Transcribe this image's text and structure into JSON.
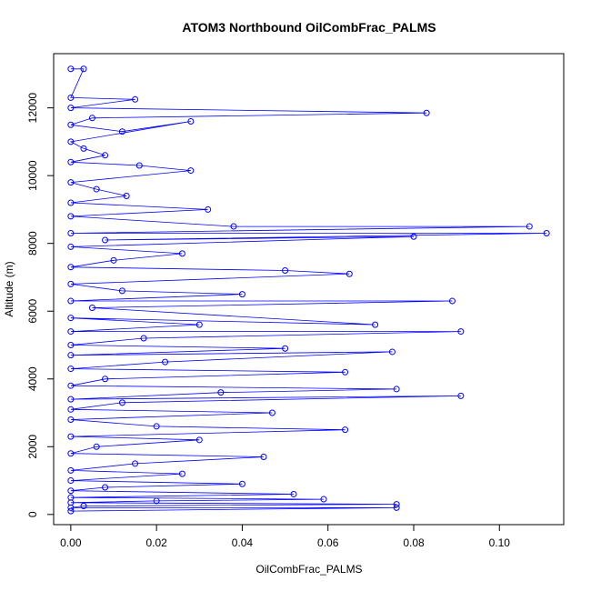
{
  "chart_data": {
    "type": "scatter",
    "title": "ATOM3 Northbound OilCombFrac_PALMS",
    "xlabel": "OilCombFrac_PALMS",
    "ylabel": "Altitude (m)",
    "xlim": [
      -0.004,
      0.115
    ],
    "ylim": [
      -300,
      13600
    ],
    "x_ticks": [
      0.0,
      0.02,
      0.04,
      0.06,
      0.08,
      0.1
    ],
    "x_tick_labels": [
      "0.00",
      "0.02",
      "0.04",
      "0.06",
      "0.08",
      "0.10"
    ],
    "y_ticks": [
      0,
      2000,
      4000,
      6000,
      8000,
      10000,
      12000
    ],
    "y_tick_labels": [
      "0",
      "2000",
      "4000",
      "6000",
      "8000",
      "10000",
      "12000"
    ],
    "grid": false,
    "color": "#0000ff",
    "marker": "open-circle",
    "connected": true,
    "series": [
      {
        "values": [
          [
            0.0,
            13150
          ],
          [
            0.003,
            13150
          ],
          [
            0.0,
            12300
          ],
          [
            0.015,
            12250
          ],
          [
            0.0,
            12000
          ],
          [
            0.083,
            11850
          ],
          [
            0.005,
            11700
          ],
          [
            0.0,
            11500
          ],
          [
            0.012,
            11300
          ],
          [
            0.028,
            11600
          ],
          [
            0.0,
            11000
          ],
          [
            0.003,
            10800
          ],
          [
            0.008,
            10600
          ],
          [
            0.0,
            10400
          ],
          [
            0.016,
            10300
          ],
          [
            0.028,
            10150
          ],
          [
            0.0,
            9800
          ],
          [
            0.006,
            9600
          ],
          [
            0.013,
            9400
          ],
          [
            0.0,
            9200
          ],
          [
            0.032,
            9000
          ],
          [
            0.0,
            8800
          ],
          [
            0.038,
            8500
          ],
          [
            0.107,
            8500
          ],
          [
            0.0,
            8300
          ],
          [
            0.111,
            8300
          ],
          [
            0.008,
            8100
          ],
          [
            0.08,
            8200
          ],
          [
            0.0,
            7900
          ],
          [
            0.026,
            7700
          ],
          [
            0.01,
            7500
          ],
          [
            0.0,
            7300
          ],
          [
            0.05,
            7200
          ],
          [
            0.065,
            7100
          ],
          [
            0.0,
            6800
          ],
          [
            0.012,
            6600
          ],
          [
            0.04,
            6500
          ],
          [
            0.0,
            6300
          ],
          [
            0.089,
            6300
          ],
          [
            0.005,
            6100
          ],
          [
            0.071,
            5600
          ],
          [
            0.0,
            5800
          ],
          [
            0.03,
            5600
          ],
          [
            0.0,
            5400
          ],
          [
            0.091,
            5400
          ],
          [
            0.017,
            5200
          ],
          [
            0.0,
            5000
          ],
          [
            0.05,
            4900
          ],
          [
            0.0,
            4700
          ],
          [
            0.075,
            4800
          ],
          [
            0.022,
            4500
          ],
          [
            0.0,
            4300
          ],
          [
            0.064,
            4200
          ],
          [
            0.008,
            4000
          ],
          [
            0.0,
            3800
          ],
          [
            0.076,
            3700
          ],
          [
            0.035,
            3600
          ],
          [
            0.0,
            3400
          ],
          [
            0.091,
            3500
          ],
          [
            0.012,
            3300
          ],
          [
            0.0,
            3100
          ],
          [
            0.047,
            3000
          ],
          [
            0.0,
            2800
          ],
          [
            0.02,
            2600
          ],
          [
            0.064,
            2500
          ],
          [
            0.0,
            2300
          ],
          [
            0.03,
            2200
          ],
          [
            0.006,
            2000
          ],
          [
            0.0,
            1800
          ],
          [
            0.045,
            1700
          ],
          [
            0.015,
            1500
          ],
          [
            0.0,
            1300
          ],
          [
            0.026,
            1200
          ],
          [
            0.0,
            1000
          ],
          [
            0.04,
            900
          ],
          [
            0.008,
            800
          ],
          [
            0.0,
            700
          ],
          [
            0.052,
            600
          ],
          [
            0.0,
            500
          ],
          [
            0.059,
            450
          ],
          [
            0.02,
            400
          ],
          [
            0.0,
            350
          ],
          [
            0.076,
            300
          ],
          [
            0.003,
            250
          ],
          [
            0.0,
            200
          ],
          [
            0.076,
            200
          ],
          [
            0.0,
            100
          ]
        ]
      }
    ]
  }
}
